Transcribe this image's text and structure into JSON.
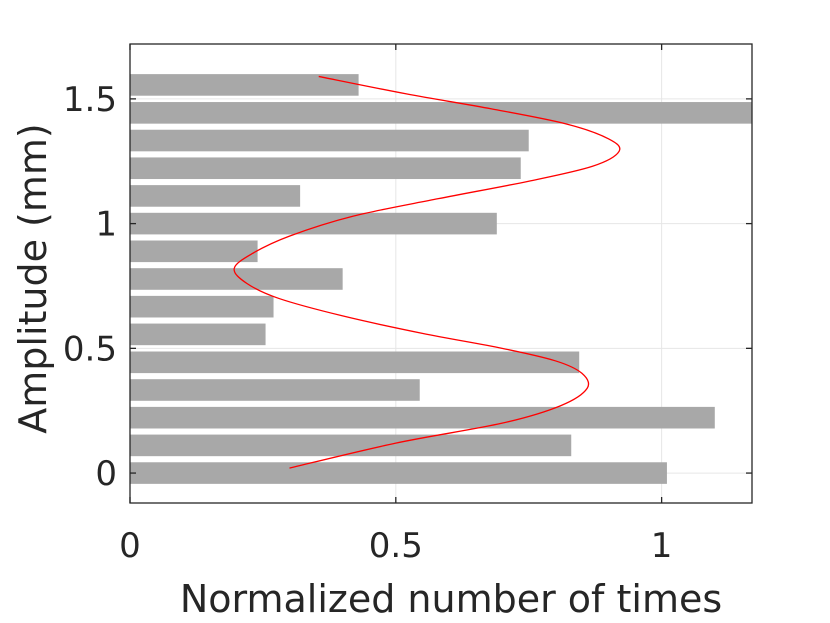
{
  "chart_data": {
    "type": "bar",
    "orientation": "horizontal",
    "xlabel": "Normalized number of times",
    "ylabel": "Amplitude (mm)",
    "xlim": [
      0,
      1.17
    ],
    "ylim": [
      -0.12,
      1.72
    ],
    "xticks": [
      0,
      0.5,
      1
    ],
    "xtick_labels": [
      "0",
      "0.5",
      "1"
    ],
    "yticks": [
      0,
      0.5,
      1,
      1.5
    ],
    "ytick_labels": [
      "0",
      "0.5",
      "1",
      "1.5"
    ],
    "grid": true,
    "bar_color": "#a8a8a8",
    "curve_color": "#ff0000",
    "bars": {
      "y": [
        0.0,
        0.111,
        0.222,
        0.333,
        0.444,
        0.556,
        0.667,
        0.778,
        0.889,
        1.0,
        1.111,
        1.222,
        1.333,
        1.444,
        1.556
      ],
      "values": [
        1.01,
        0.83,
        1.1,
        0.545,
        0.845,
        0.255,
        0.27,
        0.4,
        0.24,
        0.69,
        0.32,
        0.735,
        0.75,
        1.17,
        0.43
      ]
    },
    "curve": {
      "x": [
        0.3,
        0.5,
        0.7,
        0.81,
        0.86,
        0.85,
        0.8,
        0.7,
        0.55,
        0.4,
        0.28,
        0.22,
        0.196,
        0.23,
        0.3,
        0.42,
        0.58,
        0.75,
        0.87,
        0.92,
        0.9,
        0.82,
        0.68,
        0.52,
        0.355
      ],
      "y": [
        0.02,
        0.12,
        0.2,
        0.27,
        0.34,
        0.4,
        0.45,
        0.5,
        0.56,
        0.63,
        0.7,
        0.76,
        0.82,
        0.88,
        0.95,
        1.03,
        1.1,
        1.17,
        1.23,
        1.29,
        1.34,
        1.4,
        1.46,
        1.52,
        1.59
      ]
    }
  }
}
